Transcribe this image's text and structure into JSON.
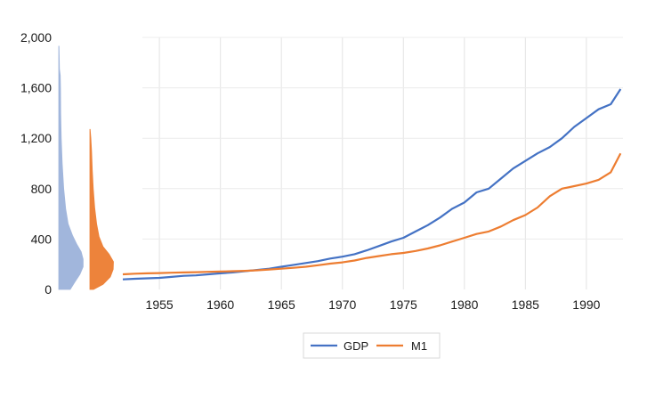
{
  "chart_data": {
    "type": "line",
    "title": "",
    "xlabel": "",
    "ylabel": "",
    "xlim": [
      1952,
      1993
    ],
    "ylim": [
      0,
      2000
    ],
    "yticks": [
      0,
      400,
      800,
      1200,
      1600,
      2000
    ],
    "ytick_labels": [
      "0",
      "400",
      "800",
      "1,200",
      "1,600",
      "2,000"
    ],
    "xticks": [
      1955,
      1960,
      1965,
      1970,
      1975,
      1980,
      1985,
      1990
    ],
    "xtick_labels": [
      "1955",
      "1960",
      "1965",
      "1970",
      "1975",
      "1980",
      "1985",
      "1990"
    ],
    "grid": "vertical",
    "legend_position": "bottom",
    "series": [
      {
        "name": "GDP",
        "color": "#4472C4",
        "x": [
          1952,
          1953,
          1954,
          1955,
          1956,
          1957,
          1958,
          1959,
          1960,
          1961,
          1962,
          1963,
          1964,
          1965,
          1966,
          1967,
          1968,
          1969,
          1970,
          1971,
          1972,
          1973,
          1974,
          1975,
          1976,
          1977,
          1978,
          1979,
          1980,
          1981,
          1982,
          1983,
          1984,
          1985,
          1986,
          1987,
          1988,
          1989,
          1990,
          1991,
          1992,
          1992.8
        ],
        "values": [
          80,
          85,
          88,
          92,
          100,
          108,
          112,
          120,
          128,
          135,
          145,
          155,
          165,
          180,
          195,
          210,
          225,
          245,
          260,
          280,
          310,
          345,
          380,
          410,
          460,
          510,
          570,
          640,
          690,
          770,
          800,
          880,
          960,
          1020,
          1080,
          1130,
          1200,
          1290,
          1360,
          1430,
          1470,
          1590
        ]
      },
      {
        "name": "M1",
        "color": "#ED7D31",
        "x": [
          1952,
          1953,
          1954,
          1955,
          1956,
          1957,
          1958,
          1959,
          1960,
          1961,
          1962,
          1963,
          1964,
          1965,
          1966,
          1967,
          1968,
          1969,
          1970,
          1971,
          1972,
          1973,
          1974,
          1975,
          1976,
          1977,
          1978,
          1979,
          1980,
          1981,
          1982,
          1983,
          1984,
          1985,
          1986,
          1987,
          1988,
          1989,
          1990,
          1991,
          1992,
          1992.8
        ],
        "values": [
          120,
          125,
          128,
          130,
          133,
          135,
          137,
          140,
          142,
          145,
          148,
          152,
          158,
          165,
          172,
          180,
          192,
          205,
          215,
          230,
          250,
          265,
          280,
          290,
          305,
          325,
          350,
          380,
          410,
          440,
          460,
          500,
          550,
          590,
          650,
          740,
          800,
          820,
          840,
          870,
          930,
          1080
        ]
      }
    ],
    "marginal_distributions": [
      {
        "series": "GDP",
        "color": "#9DB3DB",
        "max_value": 1930,
        "profile": [
          [
            0,
            0.46
          ],
          [
            60,
            0.65
          ],
          [
            120,
            0.85
          ],
          [
            180,
            0.98
          ],
          [
            240,
            0.98
          ],
          [
            300,
            0.9
          ],
          [
            360,
            0.72
          ],
          [
            430,
            0.55
          ],
          [
            520,
            0.38
          ],
          [
            640,
            0.28
          ],
          [
            800,
            0.2
          ],
          [
            1000,
            0.14
          ],
          [
            1200,
            0.1
          ],
          [
            1400,
            0.08
          ],
          [
            1600,
            0.07
          ],
          [
            1700,
            0.06
          ],
          [
            1750,
            0.03
          ],
          [
            1930,
            0.01
          ]
        ]
      },
      {
        "series": "M1",
        "color": "#ED7D31",
        "max_value": 1270,
        "profile": [
          [
            0,
            0.15
          ],
          [
            40,
            0.55
          ],
          [
            100,
            0.85
          ],
          [
            160,
            0.97
          ],
          [
            220,
            0.98
          ],
          [
            280,
            0.8
          ],
          [
            340,
            0.55
          ],
          [
            420,
            0.38
          ],
          [
            520,
            0.28
          ],
          [
            650,
            0.2
          ],
          [
            800,
            0.14
          ],
          [
            950,
            0.1
          ],
          [
            1100,
            0.07
          ],
          [
            1200,
            0.04
          ],
          [
            1270,
            0.01
          ]
        ]
      }
    ]
  }
}
